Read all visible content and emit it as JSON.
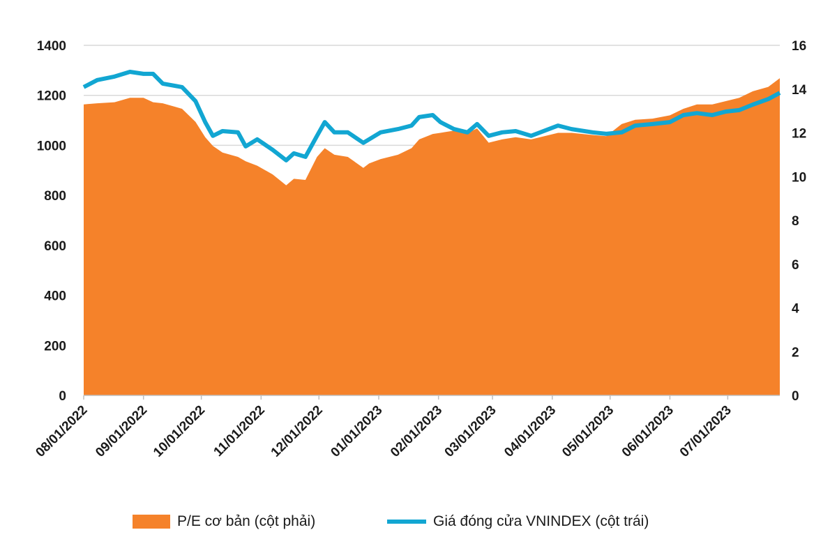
{
  "chart_data": {
    "type": "area+line",
    "x_tick_labels": [
      "08/01/2022",
      "09/01/2022",
      "10/01/2022",
      "11/01/2022",
      "12/01/2022",
      "01/01/2023",
      "02/01/2023",
      "03/01/2023",
      "04/01/2023",
      "05/01/2023",
      "06/01/2023",
      "07/01/2023"
    ],
    "x_range": [
      "2022-08-01",
      "2023-07-28"
    ],
    "y_left": {
      "ticks": [
        "0",
        "200",
        "400",
        "600",
        "800",
        "1000",
        "1200",
        "1400"
      ],
      "range": [
        0,
        1400
      ]
    },
    "y_right": {
      "ticks": [
        "0",
        "2",
        "4",
        "6",
        "8",
        "10",
        "12",
        "14",
        "16"
      ],
      "range": [
        0,
        16
      ]
    },
    "grid": true,
    "legend_position": "bottom",
    "x": [
      "2022-08-01",
      "2022-08-08",
      "2022-08-17",
      "2022-08-25",
      "2022-09-01",
      "2022-09-06",
      "2022-09-11",
      "2022-09-21",
      "2022-09-28",
      "2022-10-03",
      "2022-10-07",
      "2022-10-12",
      "2022-10-20",
      "2022-10-24",
      "2022-10-30",
      "2022-11-07",
      "2022-11-14",
      "2022-11-18",
      "2022-11-24",
      "2022-11-30",
      "2022-12-04",
      "2022-12-09",
      "2022-12-16",
      "2022-12-24",
      "2022-12-27",
      "2023-01-02",
      "2023-01-11",
      "2023-01-18",
      "2023-01-22",
      "2023-01-29",
      "2023-02-02",
      "2023-02-09",
      "2023-02-16",
      "2023-02-21",
      "2023-02-27",
      "2023-03-06",
      "2023-03-13",
      "2023-03-21",
      "2023-04-04",
      "2023-04-11",
      "2023-04-22",
      "2023-04-29",
      "2023-05-07",
      "2023-05-14",
      "2023-05-23",
      "2023-06-01",
      "2023-06-08",
      "2023-06-15",
      "2023-06-23",
      "2023-06-30",
      "2023-07-07",
      "2023-07-14",
      "2023-07-22",
      "2023-07-28"
    ],
    "series": [
      {
        "name": "P/E cơ bản (cột phải)",
        "type": "area",
        "axis": "right",
        "color": "#f5822a",
        "values": [
          13.3,
          13.35,
          13.4,
          13.6,
          13.6,
          13.4,
          13.35,
          13.1,
          12.5,
          11.8,
          11.4,
          11.1,
          10.9,
          10.7,
          10.5,
          10.1,
          9.6,
          9.9,
          9.85,
          10.9,
          11.3,
          11.0,
          10.9,
          10.4,
          10.6,
          10.8,
          11.0,
          11.3,
          11.7,
          11.95,
          12.0,
          12.1,
          12.0,
          12.2,
          11.55,
          11.7,
          11.8,
          11.7,
          12.0,
          12.0,
          11.9,
          11.85,
          12.4,
          12.6,
          12.65,
          12.8,
          13.1,
          13.3,
          13.3,
          13.45,
          13.6,
          13.9,
          14.1,
          14.5
        ]
      },
      {
        "name": "Giá đóng cửa VNINDEX (cột trái)",
        "type": "line",
        "axis": "left",
        "color": "#12a6d2",
        "values": [
          1233,
          1261,
          1275,
          1294,
          1286,
          1286,
          1247,
          1233,
          1177,
          1093,
          1038,
          1057,
          1052,
          996,
          1024,
          982,
          940,
          968,
          954,
          1038,
          1093,
          1052,
          1052,
          1010,
          1024,
          1052,
          1065,
          1079,
          1113,
          1121,
          1093,
          1065,
          1052,
          1085,
          1038,
          1052,
          1057,
          1038,
          1079,
          1065,
          1052,
          1046,
          1052,
          1079,
          1085,
          1093,
          1121,
          1129,
          1121,
          1135,
          1141,
          1163,
          1185,
          1210
        ]
      }
    ]
  }
}
